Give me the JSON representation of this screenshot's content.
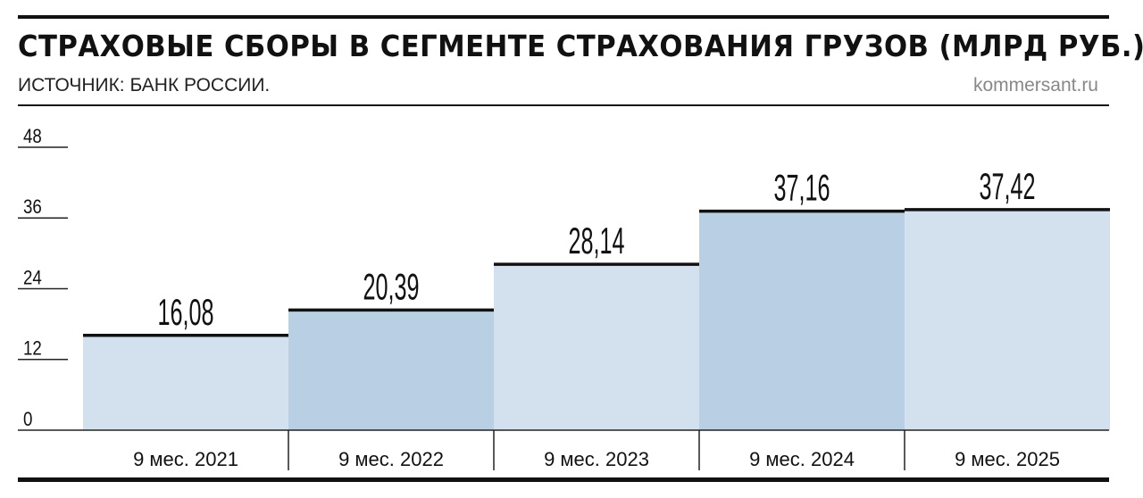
{
  "title": "СТРАХОВЫЕ СБОРЫ В СЕГМЕНТЕ СТРАХОВАНИЯ ГРУЗОВ (МЛРД РУБ.)",
  "subtitle": "ИСТОЧНИК: БАНК РОССИИ.",
  "source": "kommersant.ru",
  "chart_data": {
    "type": "bar",
    "categories": [
      "9 мес. 2021",
      "9 мес. 2022",
      "9 мес. 2023",
      "9 мес. 2024",
      "9 мес. 2025"
    ],
    "values": [
      16.08,
      20.39,
      28.14,
      37.16,
      37.42
    ],
    "data_labels": [
      "16,08",
      "20,39",
      "28,14",
      "37,16",
      "37,42"
    ],
    "yticks": [
      "0",
      "12",
      "24",
      "36",
      "48"
    ],
    "ylim": [
      0,
      48
    ],
    "colors": [
      "#d3e0ee",
      "#b9cfe4"
    ]
  }
}
